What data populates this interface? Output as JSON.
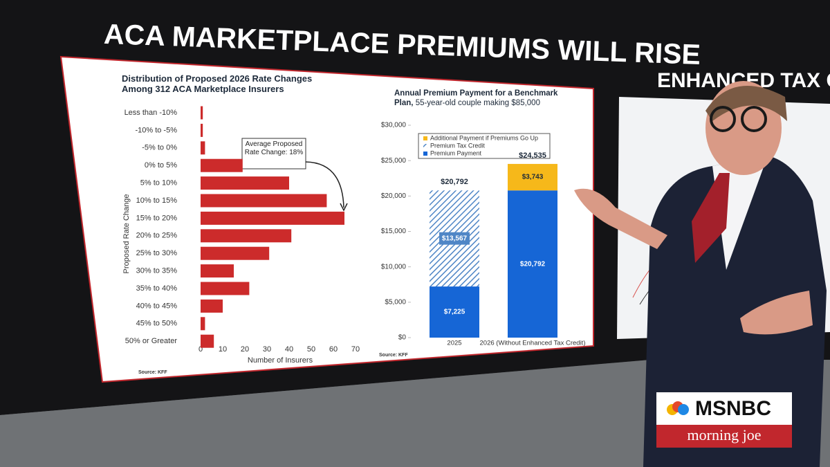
{
  "headline": "ACA MARKETPLACE PREMIUMS WILL RISE",
  "chart_data": [
    {
      "type": "hbar",
      "title": "Distribution of Proposed 2026 Rate Changes Among 312 ACA Marketplace Insurers",
      "y_label": "Proposed Rate Change",
      "x_label": "Number of Insurers",
      "annotation": "Average Proposed Rate Change: 18%",
      "source": "Source: KFF",
      "categories": [
        "Less than -10%",
        "-10% to -5%",
        "-5% to 0%",
        "0% to 5%",
        "5% to 10%",
        "10% to 15%",
        "15% to 20%",
        "20% to 25%",
        "25% to 30%",
        "30% to 35%",
        "35% to 40%",
        "40% to 45%",
        "45% to 50%",
        "50% or Greater"
      ],
      "values": [
        1,
        1,
        2,
        19,
        40,
        57,
        65,
        41,
        31,
        15,
        22,
        10,
        2,
        6
      ],
      "color": "#cc2b2b",
      "xlim": [
        0,
        70
      ],
      "xticks": [
        0,
        10,
        20,
        30,
        40,
        50,
        60,
        70
      ]
    },
    {
      "type": "stacked_bar",
      "title": "Annual Premium Payment for a Benchmark Plan,",
      "subtitle": "55-year-old couple making $85,000",
      "source": "Source: KFF",
      "categories": [
        "2025",
        "2026 (Without Enhanced Tax Credit)"
      ],
      "series": [
        {
          "name": "Premium Payment",
          "color": "#1666d6",
          "hatched": false,
          "label_color": "#ffffff",
          "values": [
            7225,
            20792
          ],
          "value_labels": [
            "$7,225",
            "$20,792"
          ]
        },
        {
          "name": "Premium Tax Credit",
          "color": "#4f86c6",
          "hatched": true,
          "label_color": "#ffffff",
          "values": [
            13567,
            null
          ],
          "value_labels": [
            "$13,567",
            null
          ]
        },
        {
          "name": "Additional Payment if Premiums Go Up",
          "color": "#f6b81a",
          "hatched": false,
          "label_color": "#1d2a3a",
          "values": [
            null,
            3743
          ],
          "value_labels": [
            null,
            "$3,743"
          ]
        }
      ],
      "totals": [
        20792,
        24535
      ],
      "total_labels": [
        "$20,792",
        "$24,535"
      ],
      "ylim": [
        0,
        30000
      ],
      "yticks": [
        {
          "value": 0,
          "label": "$0"
        },
        {
          "value": 5000,
          "label": "$5,000"
        },
        {
          "value": 10000,
          "label": "$10,000"
        },
        {
          "value": 15000,
          "label": "$15,000"
        },
        {
          "value": 20000,
          "label": "$20,000"
        },
        {
          "value": 25000,
          "label": "$25,000"
        },
        {
          "value": 30000,
          "label": "$30,000"
        }
      ]
    }
  ],
  "side_panel": {
    "title": "ENHANCED TAX CRE"
  },
  "logo": {
    "network": "MSNBC",
    "show": "morning joe"
  }
}
